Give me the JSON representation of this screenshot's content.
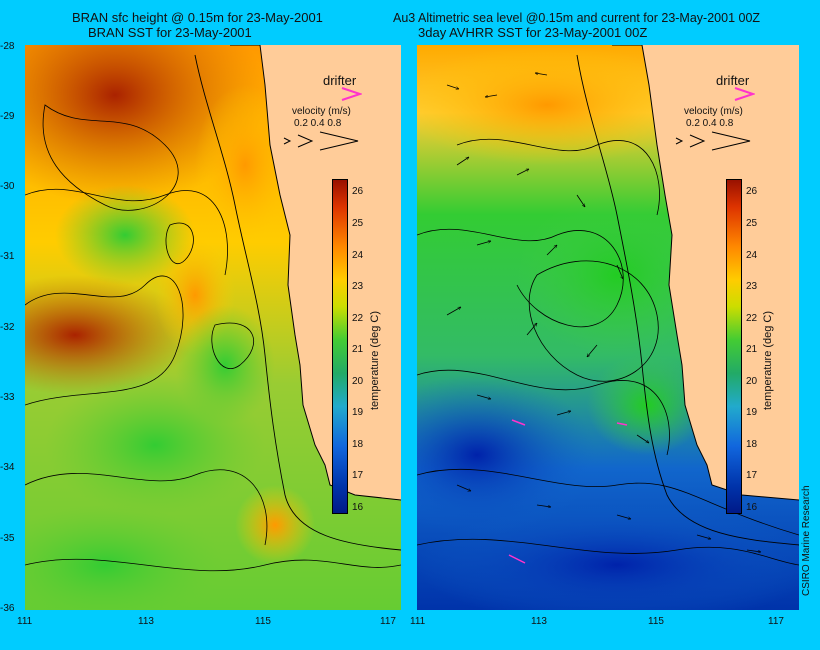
{
  "left_panel": {
    "title_line1": "BRAN sfc height @ 0.15m for 23-May-2001",
    "title_line2": "BRAN SST for 23-May-2001"
  },
  "right_panel": {
    "title_line1": "Au3 Altimetric sea level  @0.15m and current for 23-May-2001 00Z",
    "title_line2": "3day AVHRR SST for 23-May-2001 00Z"
  },
  "x_axis": {
    "ticks": [
      "111",
      "113",
      "115",
      "117"
    ]
  },
  "y_axis": {
    "ticks": [
      "-28",
      "-29",
      "-30",
      "-31",
      "-32",
      "-33",
      "-34",
      "-35",
      "-36"
    ]
  },
  "legend": {
    "drifter_label": "drifter",
    "velocity_label": "velocity (m/s)",
    "velocity_scale": "0.2 0.4 0.8"
  },
  "colorbar": {
    "label": "temperature (deg C)",
    "ticks": [
      "26",
      "25",
      "24",
      "23",
      "22",
      "21",
      "20",
      "19",
      "18",
      "17",
      "16"
    ],
    "min": 16,
    "max": 26.5
  },
  "credit": "CSIRO Marine Research",
  "colors": {
    "background": "#00ccff",
    "land": "#ffcc99",
    "drifter": "#ff33cc"
  }
}
